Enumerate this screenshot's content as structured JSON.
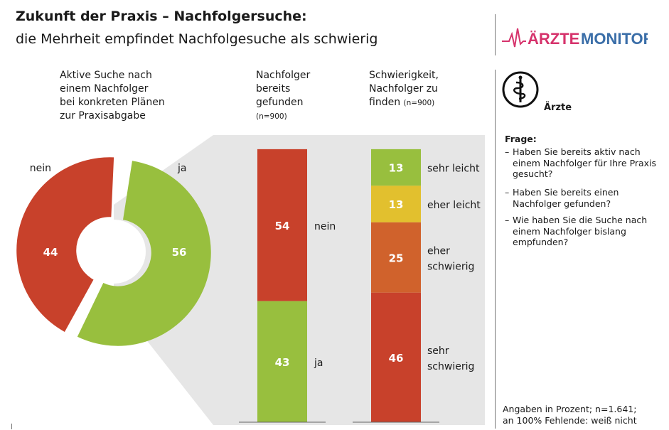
{
  "header": {
    "title": "Zukunft der Praxis – Nachfolgersuche:",
    "subtitle": "die Mehrheit empfindet Nachfolgesuche als schwierig",
    "logo_text_left": "ÄRZTE",
    "logo_text_right": "MONITOR"
  },
  "sidebar": {
    "badge_label": "Ärzte",
    "question_heading": "Frage:",
    "questions": [
      "Haben Sie bereits aktiv nach einem Nachfolger für Ihre Praxis gesucht?",
      "Haben Sie bereits einen Nachfolger gefunden?",
      "Wie haben Sie die Suche nach einem Nachfolger bislang empfunden?"
    ],
    "footnote_line1": "Angaben in Prozent; n=1.641;",
    "footnote_line2": "an 100% Fehlende: weiß nicht",
    "dash": "–"
  },
  "columns": {
    "donut_head": [
      "Aktive Suche nach",
      "einem Nachfolger",
      "bei konkreten Plänen",
      "zur Praxisabgabe"
    ],
    "found_head": [
      "Nachfolger",
      "bereits",
      "gefunden"
    ],
    "found_n": "(n=900)",
    "difficulty_head": [
      "Schwierigkeit,",
      "Nachfolger zu",
      "finden"
    ],
    "difficulty_n": "(n=900)"
  },
  "colors": {
    "red": "#c8412b",
    "green": "#98bf3e",
    "yellow": "#e2c02e",
    "orange": "#d0622c",
    "funnel": "#e6e6e6"
  },
  "chart_data": [
    {
      "type": "pie",
      "title": "Aktive Suche nach einem Nachfolger bei konkreten Plänen zur Praxisabgabe",
      "slices": [
        {
          "label": "nein",
          "value": 44,
          "color": "#c8412b"
        },
        {
          "label": "ja",
          "value": 56,
          "color": "#98bf3e"
        }
      ]
    },
    {
      "type": "bar",
      "title": "Nachfolger bereits gefunden",
      "n": "(n=900)",
      "stacked": true,
      "segments": [
        {
          "label": "nein",
          "value": 54,
          "color": "#c8412b"
        },
        {
          "label": "ja",
          "value": 43,
          "color": "#98bf3e"
        }
      ]
    },
    {
      "type": "bar",
      "title": "Schwierigkeit, Nachfolger zu finden",
      "n": "(n=900)",
      "stacked": true,
      "segments": [
        {
          "label": "sehr leicht",
          "value": 13,
          "color": "#98bf3e"
        },
        {
          "label": "eher leicht",
          "value": 13,
          "color": "#e2c02e"
        },
        {
          "label": "eher schwierig",
          "value": 25,
          "color": "#d0622c"
        },
        {
          "label": "sehr schwierig",
          "value": 46,
          "color": "#c8412b"
        }
      ]
    }
  ]
}
